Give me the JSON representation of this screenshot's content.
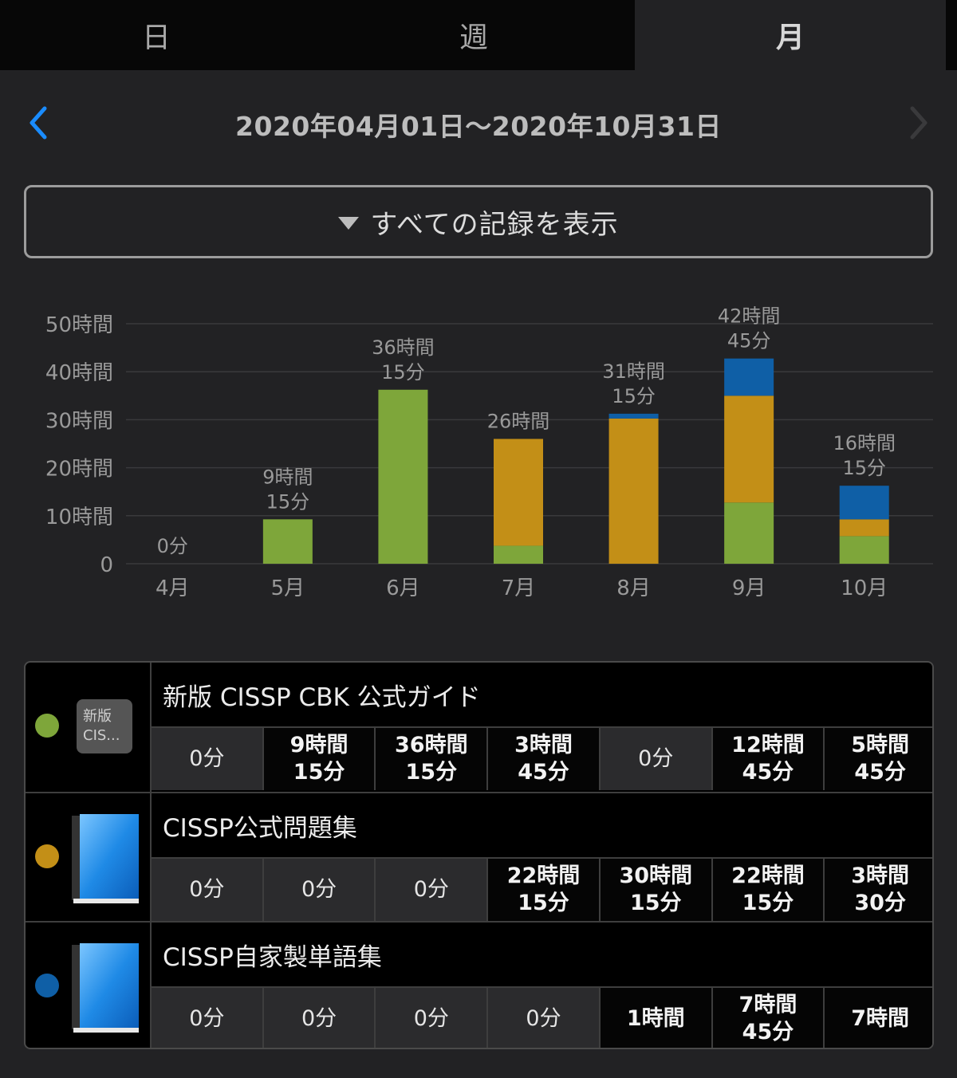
{
  "tabs": [
    "日",
    "週",
    "月"
  ],
  "active_tab": "月",
  "date_range": "2020年04月01日〜2020年10月31日",
  "filter_label": "すべての記録を表示",
  "colors": {
    "green": "#7ea63a",
    "gold": "#c38f17",
    "blue": "#0f5fa6",
    "accent": "#1a8cff"
  },
  "chart_data": {
    "type": "bar",
    "stacked": true,
    "categories": [
      "4月",
      "5月",
      "6月",
      "7月",
      "8月",
      "9月",
      "10月"
    ],
    "series": [
      {
        "name": "新版 CISSP CBK 公式ガイド",
        "color": "#7ea63a",
        "values": [
          0,
          9.25,
          36.25,
          3.75,
          0,
          12.75,
          5.75
        ]
      },
      {
        "name": "CISSP公式問題集",
        "color": "#c38f17",
        "values": [
          0,
          0,
          0,
          22.25,
          30.25,
          22.25,
          3.5
        ]
      },
      {
        "name": "CISSP自家製単語集",
        "color": "#0f5fa6",
        "values": [
          0,
          0,
          0,
          0,
          1,
          7.75,
          7
        ]
      }
    ],
    "totals": [
      "0分",
      "9時間\n15分",
      "36時間\n15分",
      "26時間",
      "31時間\n15分",
      "42時間\n45分",
      "16時間\n15分"
    ],
    "y_ticks": [
      "0",
      "10時間",
      "20時間",
      "30時間",
      "40時間",
      "50時間"
    ],
    "ylim": [
      0,
      50
    ],
    "grid": true
  },
  "records": [
    {
      "title": "新版 CISSP CBK 公式ガイド",
      "thumb": "新版\nCIS...",
      "color": "#7ea63a",
      "icon": "text-thumb",
      "cells": [
        "0分",
        "9時間\n15分",
        "36時間\n15分",
        "3時間\n45分",
        "0分",
        "12時間\n45分",
        "5時間\n45分"
      ]
    },
    {
      "title": "CISSP公式問題集",
      "thumb": "",
      "color": "#c38f17",
      "icon": "blue-book-icon",
      "cells": [
        "0分",
        "0分",
        "0分",
        "22時間\n15分",
        "30時間\n15分",
        "22時間\n15分",
        "3時間\n30分"
      ]
    },
    {
      "title": "CISSP自家製単語集",
      "thumb": "",
      "color": "#0f5fa6",
      "icon": "blue-book-icon",
      "cells": [
        "0分",
        "0分",
        "0分",
        "0分",
        "1時間",
        "7時間\n45分",
        "7時間"
      ]
    }
  ]
}
